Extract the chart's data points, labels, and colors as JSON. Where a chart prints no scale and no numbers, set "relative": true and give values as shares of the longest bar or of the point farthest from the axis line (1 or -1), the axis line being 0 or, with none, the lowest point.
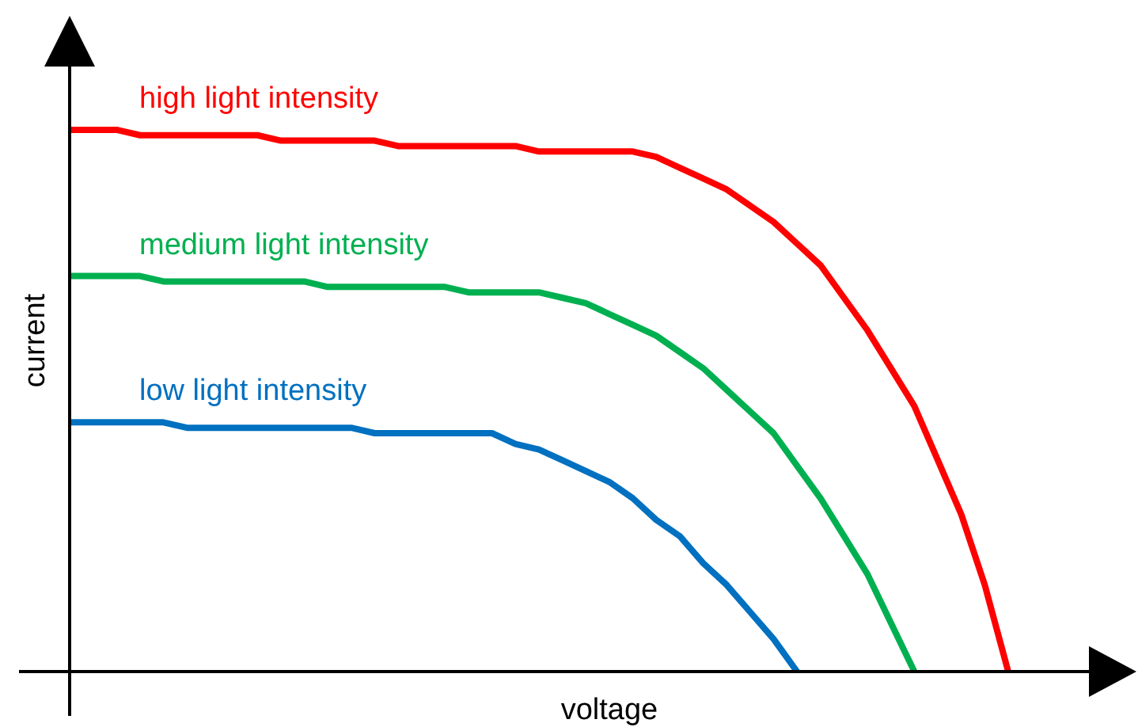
{
  "chart_data": {
    "type": "line",
    "relative": true,
    "xlabel": "voltage",
    "ylabel": "current",
    "categories": [
      null,
      null,
      null,
      null,
      null,
      null,
      null,
      null,
      null,
      null,
      null,
      null,
      null,
      null,
      null,
      null,
      null,
      null,
      null,
      null,
      null,
      null,
      null,
      null,
      null,
      null,
      null,
      null,
      null,
      null,
      null,
      null,
      null,
      null,
      null,
      null,
      null,
      null,
      null,
      null,
      null
    ],
    "marker": "none",
    "grid": false,
    "legend": false,
    "series": [
      {
        "name": "high light intensity",
        "color": "#ff0000",
        "values": [
          1.0,
          1.0,
          1.0,
          0.99,
          0.99,
          0.99,
          0.99,
          0.99,
          0.99,
          0.98,
          0.98,
          0.98,
          0.98,
          0.98,
          0.97,
          0.97,
          0.97,
          0.97,
          0.97,
          0.97,
          0.96,
          0.96,
          0.96,
          0.96,
          0.96,
          0.95,
          0.93,
          0.91,
          0.89,
          0.86,
          0.83,
          0.79,
          0.75,
          0.69,
          0.63,
          0.56,
          0.49,
          0.39,
          0.29,
          0.16,
          0
        ]
      },
      {
        "name": "medium light intensity",
        "color": "#00b050",
        "values": [
          0.73,
          0.73,
          0.73,
          0.73,
          0.72,
          0.72,
          0.72,
          0.72,
          0.72,
          0.72,
          0.72,
          0.71,
          0.71,
          0.71,
          0.71,
          0.71,
          0.71,
          0.7,
          0.7,
          0.7,
          0.7,
          0.69,
          0.68,
          0.66,
          0.64,
          0.62,
          0.59,
          0.56,
          0.52,
          0.48,
          0.44,
          0.38,
          0.32,
          0.25,
          0.18,
          0.09,
          0,
          null,
          null,
          null,
          null
        ]
      },
      {
        "name": "low light intensity",
        "color": "#0070c0",
        "values": [
          0.46,
          0.46,
          0.46,
          0.46,
          0.46,
          0.45,
          0.45,
          0.45,
          0.45,
          0.45,
          0.45,
          0.45,
          0.45,
          0.44,
          0.44,
          0.44,
          0.44,
          0.44,
          0.44,
          0.42,
          0.41,
          0.39,
          0.37,
          0.35,
          0.32,
          0.28,
          0.25,
          0.2,
          0.16,
          0.11,
          0.06,
          0,
          null,
          null,
          null,
          null,
          null,
          null,
          null,
          null,
          null
        ]
      }
    ]
  }
}
